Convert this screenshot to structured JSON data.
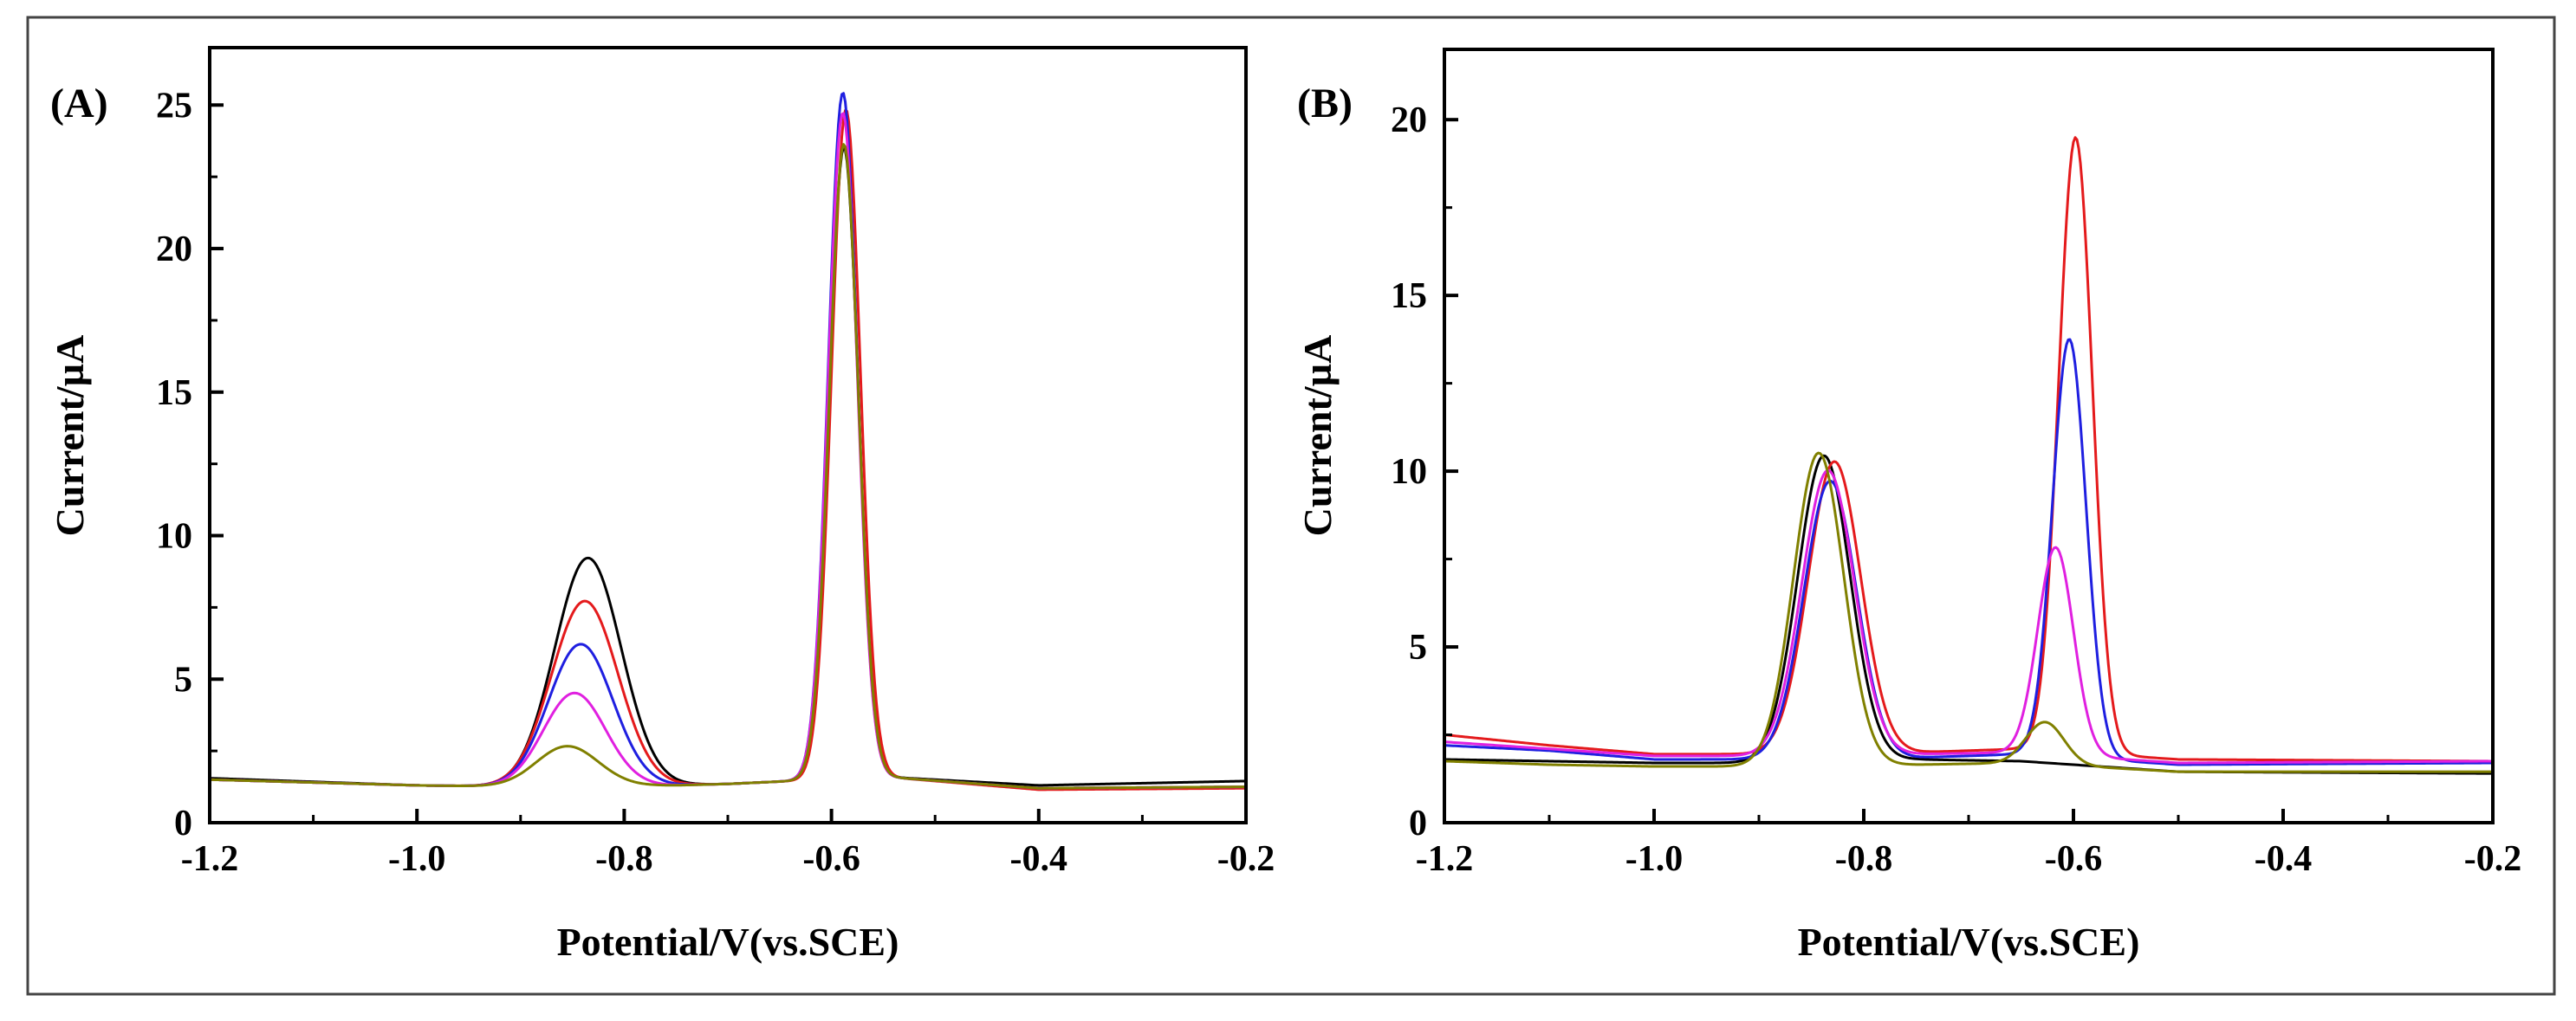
{
  "chart_data": [
    {
      "type": "line",
      "panel_label": "(A)",
      "xlabel": "Potential/V(vs.SCE)",
      "ylabel": "Current/µA",
      "xlim": [
        -1.2,
        -0.2
      ],
      "ylim": [
        0,
        27
      ],
      "x_ticks": [
        -1.2,
        -1.0,
        -0.8,
        -0.6,
        -0.4,
        -0.2
      ],
      "x_tick_labels": [
        "-1.2",
        "-1.0",
        "-0.8",
        "-0.6",
        "-0.4",
        "-0.2"
      ],
      "y_ticks": [
        0,
        5,
        10,
        15,
        20,
        25
      ],
      "y_tick_labels": [
        "0",
        "5",
        "10",
        "15",
        "20",
        "25"
      ],
      "grid": false,
      "series": [
        {
          "name": "black",
          "color": "#000000",
          "base": [
            [
              -1.2,
              1.55
            ],
            [
              -1.0,
              1.3
            ],
            [
              -0.9,
              1.25
            ],
            [
              -0.75,
              1.3
            ],
            [
              -0.7,
              1.35
            ],
            [
              -0.55,
              1.6
            ],
            [
              -0.4,
              1.3
            ],
            [
              -0.2,
              1.45
            ]
          ],
          "peaks": [
            {
              "center": -0.835,
              "height": 7.95,
              "width": 0.032
            },
            {
              "center": -0.588,
              "height": 22.0,
              "width": 0.014
            }
          ]
        },
        {
          "name": "red",
          "color": "#e41a1c",
          "base": [
            [
              -1.2,
              1.5
            ],
            [
              -1.0,
              1.3
            ],
            [
              -0.9,
              1.25
            ],
            [
              -0.75,
              1.3
            ],
            [
              -0.7,
              1.35
            ],
            [
              -0.55,
              1.6
            ],
            [
              -0.4,
              1.15
            ],
            [
              -0.2,
              1.2
            ]
          ],
          "peaks": [
            {
              "center": -0.838,
              "height": 6.45,
              "width": 0.032
            },
            {
              "center": -0.586,
              "height": 23.3,
              "width": 0.014
            }
          ]
        },
        {
          "name": "blue",
          "color": "#1f1fe0",
          "base": [
            [
              -1.2,
              1.5
            ],
            [
              -1.0,
              1.3
            ],
            [
              -0.9,
              1.25
            ],
            [
              -0.75,
              1.3
            ],
            [
              -0.7,
              1.35
            ],
            [
              -0.55,
              1.6
            ],
            [
              -0.4,
              1.2
            ],
            [
              -0.2,
              1.25
            ]
          ],
          "peaks": [
            {
              "center": -0.842,
              "height": 4.95,
              "width": 0.031
            },
            {
              "center": -0.589,
              "height": 23.9,
              "width": 0.014
            }
          ]
        },
        {
          "name": "magenta",
          "color": "#e020e0",
          "base": [
            [
              -1.2,
              1.5
            ],
            [
              -1.0,
              1.3
            ],
            [
              -0.9,
              1.25
            ],
            [
              -0.75,
              1.3
            ],
            [
              -0.7,
              1.35
            ],
            [
              -0.55,
              1.6
            ],
            [
              -0.4,
              1.2
            ],
            [
              -0.2,
              1.25
            ]
          ],
          "peaks": [
            {
              "center": -0.848,
              "height": 3.25,
              "width": 0.03
            },
            {
              "center": -0.589,
              "height": 23.2,
              "width": 0.014
            }
          ]
        },
        {
          "name": "olive",
          "color": "#808000",
          "base": [
            [
              -1.2,
              1.5
            ],
            [
              -1.0,
              1.3
            ],
            [
              -0.9,
              1.25
            ],
            [
              -0.75,
              1.3
            ],
            [
              -0.7,
              1.35
            ],
            [
              -0.55,
              1.6
            ],
            [
              -0.4,
              1.2
            ],
            [
              -0.2,
              1.25
            ]
          ],
          "peaks": [
            {
              "center": -0.855,
              "height": 1.4,
              "width": 0.03
            },
            {
              "center": -0.588,
              "height": 22.1,
              "width": 0.014
            }
          ]
        }
      ]
    },
    {
      "type": "line",
      "panel_label": "(B)",
      "xlabel": "Potential/V(vs.SCE)",
      "ylabel": "Current/µA",
      "xlim": [
        -1.2,
        -0.2
      ],
      "ylim": [
        0,
        22
      ],
      "x_ticks": [
        -1.2,
        -1.0,
        -0.8,
        -0.6,
        -0.4,
        -0.2
      ],
      "x_tick_labels": [
        "-1.2",
        "-1.0",
        "-0.8",
        "-0.6",
        "-0.4",
        "-0.2"
      ],
      "y_ticks": [
        0,
        5,
        10,
        15,
        20
      ],
      "y_tick_labels": [
        "0",
        "5",
        "10",
        "15",
        "20"
      ],
      "grid": false,
      "series": [
        {
          "name": "black",
          "color": "#000000",
          "base": [
            [
              -1.2,
              1.8
            ],
            [
              -1.1,
              1.75
            ],
            [
              -1.0,
              1.7
            ],
            [
              -0.9,
              1.7
            ],
            [
              -0.75,
              1.8
            ],
            [
              -0.65,
              1.75
            ],
            [
              -0.5,
              1.45
            ],
            [
              -0.2,
              1.4
            ]
          ],
          "peaks": [
            {
              "center": -0.838,
              "height": 8.7,
              "width": 0.025
            }
          ]
        },
        {
          "name": "red",
          "color": "#e41a1c",
          "base": [
            [
              -1.2,
              2.5
            ],
            [
              -1.1,
              2.2
            ],
            [
              -1.0,
              1.95
            ],
            [
              -0.9,
              1.95
            ],
            [
              -0.75,
              2.0
            ],
            [
              -0.65,
              2.1
            ],
            [
              -0.5,
              1.8
            ],
            [
              -0.2,
              1.75
            ]
          ],
          "peaks": [
            {
              "center": -0.828,
              "height": 8.3,
              "width": 0.025
            },
            {
              "center": -0.598,
              "height": 17.5,
              "width": 0.016
            }
          ]
        },
        {
          "name": "blue",
          "color": "#1f1fe0",
          "base": [
            [
              -1.2,
              2.2
            ],
            [
              -1.1,
              2.05
            ],
            [
              -1.0,
              1.8
            ],
            [
              -0.9,
              1.8
            ],
            [
              -0.75,
              1.85
            ],
            [
              -0.65,
              1.95
            ],
            [
              -0.5,
              1.65
            ],
            [
              -0.2,
              1.7
            ]
          ],
          "peaks": [
            {
              "center": -0.832,
              "height": 7.9,
              "width": 0.025
            },
            {
              "center": -0.604,
              "height": 11.9,
              "width": 0.016
            }
          ]
        },
        {
          "name": "magenta",
          "color": "#e020e0",
          "base": [
            [
              -1.2,
              2.3
            ],
            [
              -1.1,
              2.1
            ],
            [
              -1.0,
              1.9
            ],
            [
              -0.9,
              1.9
            ],
            [
              -0.75,
              1.95
            ],
            [
              -0.65,
              2.0
            ],
            [
              -0.5,
              1.7
            ],
            [
              -0.2,
              1.75
            ]
          ],
          "peaks": [
            {
              "center": -0.834,
              "height": 8.1,
              "width": 0.025
            },
            {
              "center": -0.617,
              "height": 5.9,
              "width": 0.017
            }
          ]
        },
        {
          "name": "olive",
          "color": "#808000",
          "base": [
            [
              -1.2,
              1.75
            ],
            [
              -1.1,
              1.65
            ],
            [
              -1.0,
              1.6
            ],
            [
              -0.9,
              1.6
            ],
            [
              -0.75,
              1.65
            ],
            [
              -0.65,
              1.7
            ],
            [
              -0.5,
              1.45
            ],
            [
              -0.2,
              1.45
            ]
          ],
          "peaks": [
            {
              "center": -0.843,
              "height": 8.9,
              "width": 0.024
            },
            {
              "center": -0.627,
              "height": 1.2,
              "width": 0.018
            }
          ]
        }
      ]
    }
  ]
}
